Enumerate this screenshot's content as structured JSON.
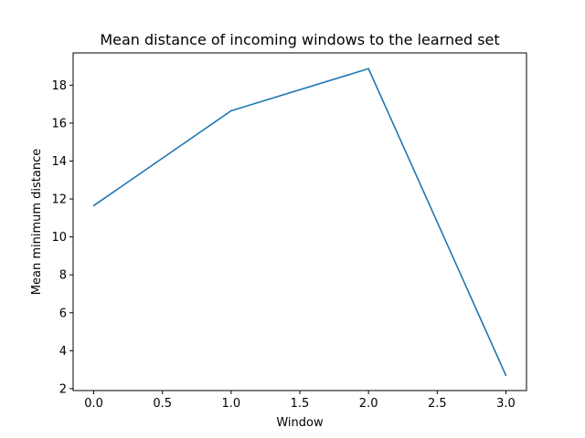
{
  "chart_data": {
    "type": "line",
    "title": "Mean distance of incoming windows to the learned set",
    "xlabel": "Window",
    "ylabel": "Mean minimum distance",
    "x": [
      0,
      1,
      2,
      3
    ],
    "series": [
      {
        "values": [
          11.65,
          16.65,
          18.87,
          2.7
        ],
        "color": "#1f77b4"
      }
    ],
    "xlim": [
      -0.15,
      3.15
    ],
    "ylim": [
      1.9,
      19.7
    ],
    "xticks": [
      0.0,
      0.5,
      1.0,
      1.5,
      2.0,
      2.5,
      3.0
    ],
    "xtick_labels": [
      "0.0",
      "0.5",
      "1.0",
      "1.5",
      "2.0",
      "2.5",
      "3.0"
    ],
    "yticks": [
      2,
      4,
      6,
      8,
      10,
      12,
      14,
      16,
      18
    ],
    "ytick_labels": [
      "2",
      "4",
      "6",
      "8",
      "10",
      "12",
      "14",
      "16",
      "18"
    ],
    "grid": false,
    "legend": "none"
  }
}
